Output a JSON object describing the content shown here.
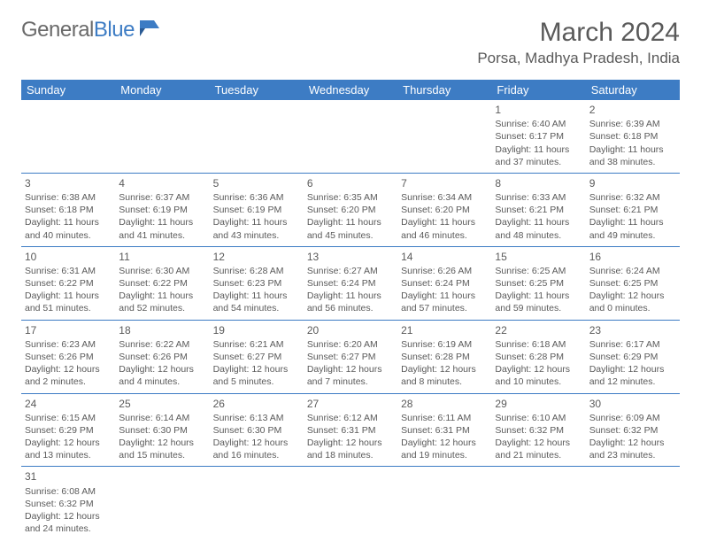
{
  "brand": {
    "general": "General",
    "blue": "Blue"
  },
  "title": "March 2024",
  "location": "Porsa, Madhya Pradesh, India",
  "colors": {
    "header_bg": "#3d7cc4",
    "header_text": "#ffffff",
    "body_text": "#5a5a5a",
    "border": "#3d7cc4",
    "background": "#ffffff"
  },
  "day_headers": [
    "Sunday",
    "Monday",
    "Tuesday",
    "Wednesday",
    "Thursday",
    "Friday",
    "Saturday"
  ],
  "rows": [
    [
      null,
      null,
      null,
      null,
      null,
      {
        "n": "1",
        "sr": "6:40 AM",
        "ss": "6:17 PM",
        "dh": "11",
        "dm": "37"
      },
      {
        "n": "2",
        "sr": "6:39 AM",
        "ss": "6:18 PM",
        "dh": "11",
        "dm": "38"
      }
    ],
    [
      {
        "n": "3",
        "sr": "6:38 AM",
        "ss": "6:18 PM",
        "dh": "11",
        "dm": "40"
      },
      {
        "n": "4",
        "sr": "6:37 AM",
        "ss": "6:19 PM",
        "dh": "11",
        "dm": "41"
      },
      {
        "n": "5",
        "sr": "6:36 AM",
        "ss": "6:19 PM",
        "dh": "11",
        "dm": "43"
      },
      {
        "n": "6",
        "sr": "6:35 AM",
        "ss": "6:20 PM",
        "dh": "11",
        "dm": "45"
      },
      {
        "n": "7",
        "sr": "6:34 AM",
        "ss": "6:20 PM",
        "dh": "11",
        "dm": "46"
      },
      {
        "n": "8",
        "sr": "6:33 AM",
        "ss": "6:21 PM",
        "dh": "11",
        "dm": "48"
      },
      {
        "n": "9",
        "sr": "6:32 AM",
        "ss": "6:21 PM",
        "dh": "11",
        "dm": "49"
      }
    ],
    [
      {
        "n": "10",
        "sr": "6:31 AM",
        "ss": "6:22 PM",
        "dh": "11",
        "dm": "51"
      },
      {
        "n": "11",
        "sr": "6:30 AM",
        "ss": "6:22 PM",
        "dh": "11",
        "dm": "52"
      },
      {
        "n": "12",
        "sr": "6:28 AM",
        "ss": "6:23 PM",
        "dh": "11",
        "dm": "54"
      },
      {
        "n": "13",
        "sr": "6:27 AM",
        "ss": "6:24 PM",
        "dh": "11",
        "dm": "56"
      },
      {
        "n": "14",
        "sr": "6:26 AM",
        "ss": "6:24 PM",
        "dh": "11",
        "dm": "57"
      },
      {
        "n": "15",
        "sr": "6:25 AM",
        "ss": "6:25 PM",
        "dh": "11",
        "dm": "59"
      },
      {
        "n": "16",
        "sr": "6:24 AM",
        "ss": "6:25 PM",
        "dh": "12",
        "dm": "0"
      }
    ],
    [
      {
        "n": "17",
        "sr": "6:23 AM",
        "ss": "6:26 PM",
        "dh": "12",
        "dm": "2"
      },
      {
        "n": "18",
        "sr": "6:22 AM",
        "ss": "6:26 PM",
        "dh": "12",
        "dm": "4"
      },
      {
        "n": "19",
        "sr": "6:21 AM",
        "ss": "6:27 PM",
        "dh": "12",
        "dm": "5"
      },
      {
        "n": "20",
        "sr": "6:20 AM",
        "ss": "6:27 PM",
        "dh": "12",
        "dm": "7"
      },
      {
        "n": "21",
        "sr": "6:19 AM",
        "ss": "6:28 PM",
        "dh": "12",
        "dm": "8"
      },
      {
        "n": "22",
        "sr": "6:18 AM",
        "ss": "6:28 PM",
        "dh": "12",
        "dm": "10"
      },
      {
        "n": "23",
        "sr": "6:17 AM",
        "ss": "6:29 PM",
        "dh": "12",
        "dm": "12"
      }
    ],
    [
      {
        "n": "24",
        "sr": "6:15 AM",
        "ss": "6:29 PM",
        "dh": "12",
        "dm": "13"
      },
      {
        "n": "25",
        "sr": "6:14 AM",
        "ss": "6:30 PM",
        "dh": "12",
        "dm": "15"
      },
      {
        "n": "26",
        "sr": "6:13 AM",
        "ss": "6:30 PM",
        "dh": "12",
        "dm": "16"
      },
      {
        "n": "27",
        "sr": "6:12 AM",
        "ss": "6:31 PM",
        "dh": "12",
        "dm": "18"
      },
      {
        "n": "28",
        "sr": "6:11 AM",
        "ss": "6:31 PM",
        "dh": "12",
        "dm": "19"
      },
      {
        "n": "29",
        "sr": "6:10 AM",
        "ss": "6:32 PM",
        "dh": "12",
        "dm": "21"
      },
      {
        "n": "30",
        "sr": "6:09 AM",
        "ss": "6:32 PM",
        "dh": "12",
        "dm": "23"
      }
    ],
    [
      {
        "n": "31",
        "sr": "6:08 AM",
        "ss": "6:32 PM",
        "dh": "12",
        "dm": "24"
      },
      null,
      null,
      null,
      null,
      null,
      null
    ]
  ],
  "labels": {
    "sunrise": "Sunrise:",
    "sunset": "Sunset:",
    "daylight": "Daylight:",
    "hours_and": "hours and",
    "minutes": "minutes."
  }
}
